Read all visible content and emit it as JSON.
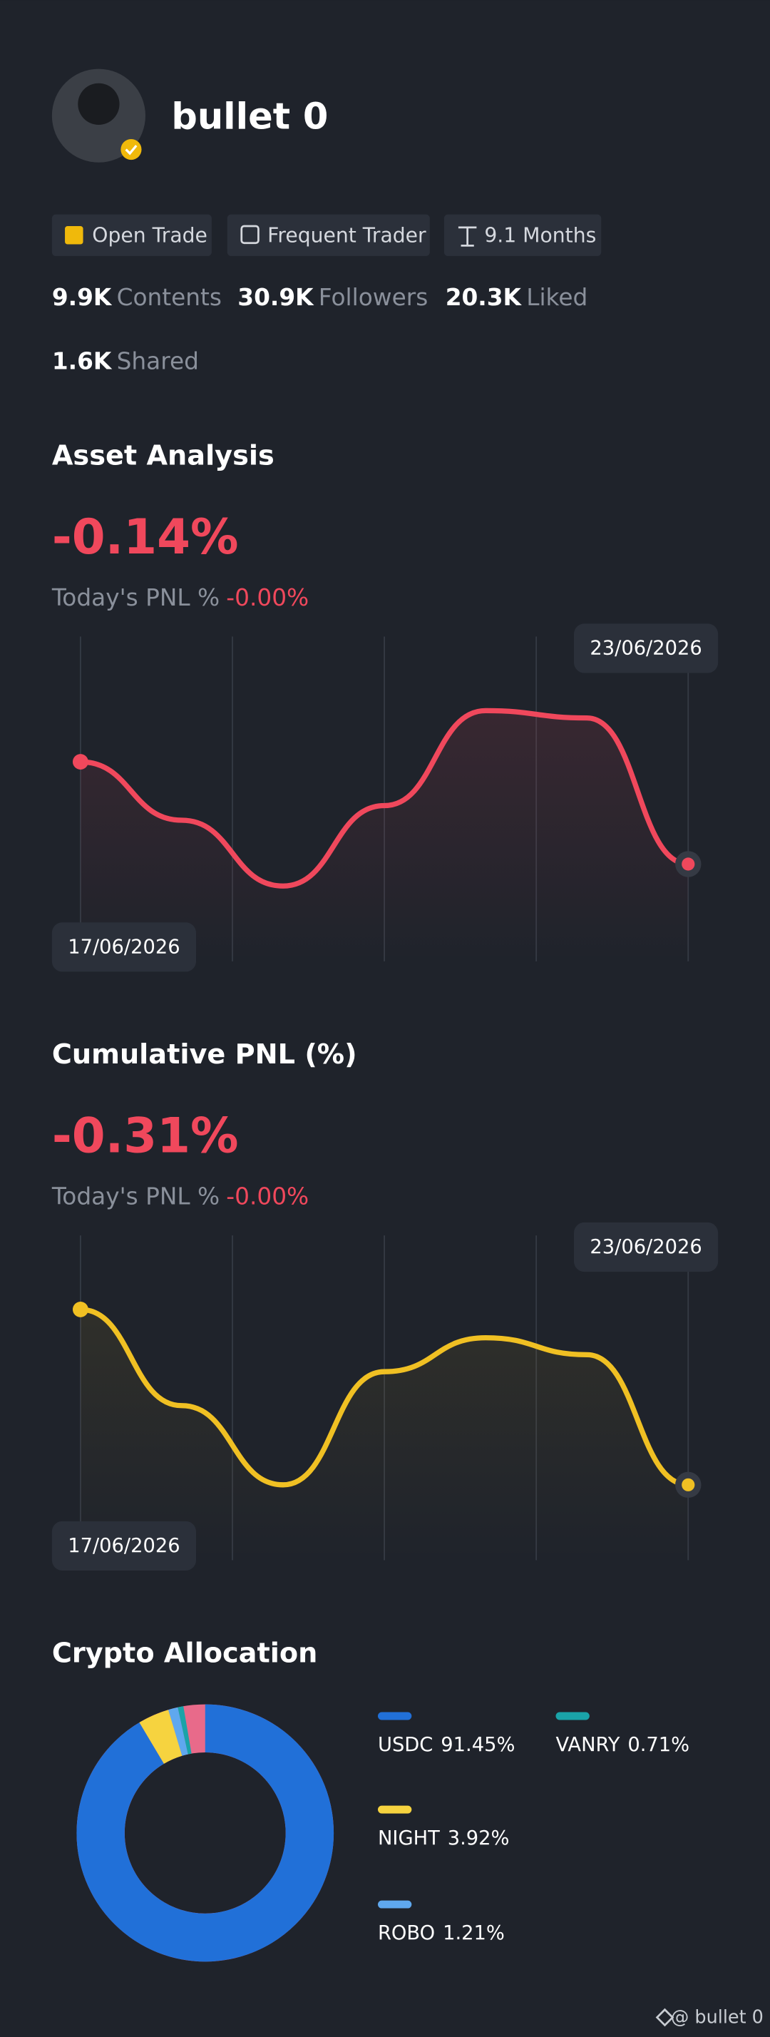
{
  "profile": {
    "name": "bullet 0",
    "badges": [
      "Open Trade",
      "Frequent Trader",
      "9.1 Months"
    ],
    "stats": [
      {
        "value": "9.9K",
        "label": "Contents"
      },
      {
        "value": "30.9K",
        "label": "Followers"
      },
      {
        "value": "20.3K",
        "label": "Liked"
      },
      {
        "value": "1.6K",
        "label": "Shared"
      }
    ]
  },
  "chart_data": [
    {
      "type": "line",
      "title": "Asset Analysis",
      "headline": "-0.14%",
      "pnl_label": "Today's PNL %",
      "pnl_value": "-0.00%",
      "categories": [
        "17/06/2026",
        null,
        null,
        null,
        null,
        null,
        "23/06/2026"
      ],
      "series": [
        {
          "color": "#f0485c",
          "values": [
            0,
            -0.08,
            -0.17,
            -0.06,
            0.07,
            0.06,
            -0.14
          ]
        }
      ]
    },
    {
      "type": "line",
      "title": "Cumulative PNL (%)",
      "headline": "-0.31%",
      "pnl_label": "Today's PNL %",
      "pnl_value": "-0.00%",
      "categories": [
        "17/06/2026",
        null,
        null,
        null,
        null,
        null,
        "23/06/2026"
      ],
      "series": [
        {
          "color": "#f0c023",
          "values": [
            0,
            -0.17,
            -0.31,
            -0.11,
            -0.05,
            -0.08,
            -0.31
          ]
        }
      ]
    },
    {
      "type": "pie",
      "title": "Crypto Allocation",
      "categories": [
        "USDC",
        "VANRY",
        "NIGHT",
        "ROBO"
      ],
      "values": [
        91.45,
        0.71,
        3.92,
        1.21
      ],
      "value_labels": [
        "91.45%",
        "0.71%",
        "3.92%",
        "1.21%"
      ],
      "colors": [
        "#2170d8",
        "#1aa3a8",
        "#f6d33f",
        "#5fa8ee"
      ]
    }
  ],
  "footer": "@ bullet 0"
}
